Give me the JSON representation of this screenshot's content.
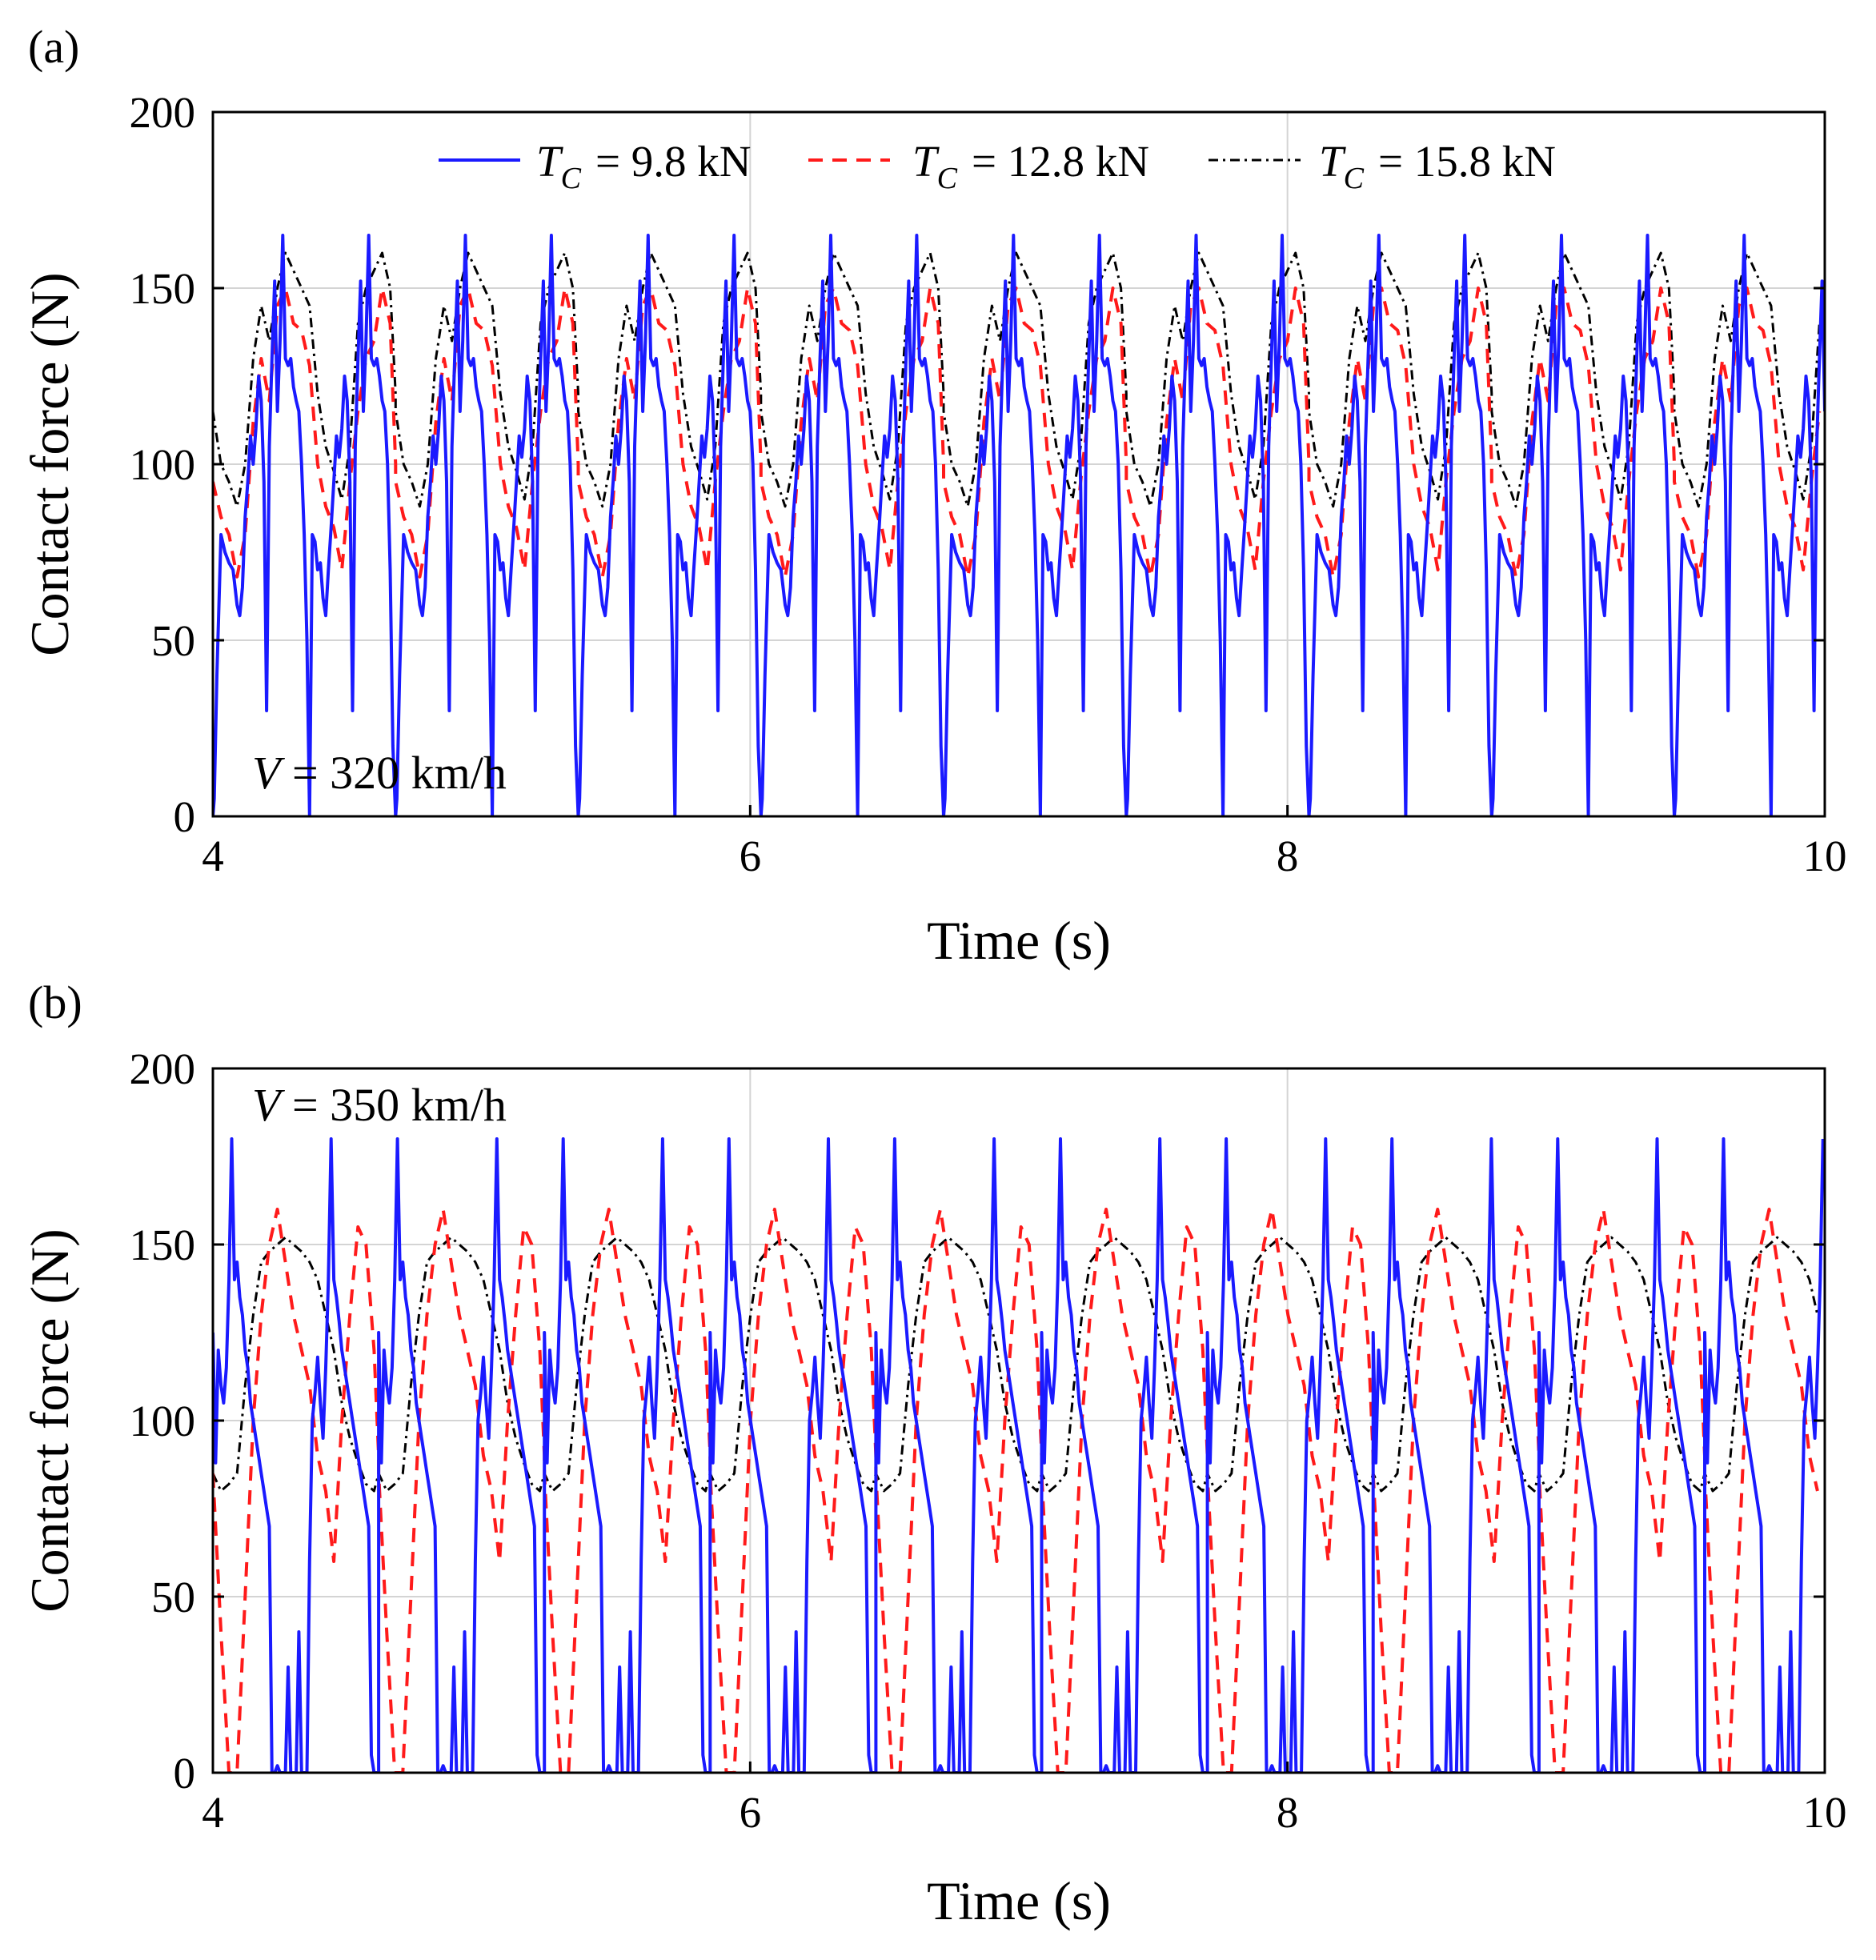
{
  "chart_data": [
    {
      "type": "line",
      "panel_label": "(a)",
      "xlabel": "Time (s)",
      "ylabel": "Contact force (N)",
      "xlim": [
        4,
        10
      ],
      "ylim": [
        0,
        200
      ],
      "xticks": [
        4,
        6,
        8,
        10
      ],
      "yticks": [
        0,
        50,
        100,
        150,
        200
      ],
      "grid": true,
      "annotation": {
        "italic": "V",
        "text": " = 320 km/h",
        "position": "bottom-left"
      },
      "legend": {
        "position": "top",
        "entries": [
          {
            "symbol": "T",
            "sub": "C",
            "label": "= 9.8 kN",
            "color": "#1a1aff",
            "style": "solid"
          },
          {
            "symbol": "T",
            "sub": "C",
            "label": "= 12.8 kN",
            "color": "#ff1a1a",
            "style": "dashed"
          },
          {
            "symbol": "T",
            "sub": "C",
            "label": "= 15.8 kN",
            "color": "#000000",
            "style": "dashdot"
          }
        ]
      },
      "period_s": 0.68,
      "series": [
        {
          "name": "Tc = 9.8 kN",
          "color": "#1a1aff",
          "style": "solid",
          "phase": [
            0.0,
            0.005,
            0.015,
            0.03,
            0.045,
            0.06,
            0.075,
            0.09,
            0.1,
            0.11,
            0.12,
            0.13,
            0.14,
            0.15,
            0.16,
            0.17,
            0.18,
            0.19,
            0.2,
            0.21,
            0.22,
            0.23,
            0.24,
            0.25,
            0.26,
            0.27,
            0.28,
            0.29,
            0.3,
            0.31,
            0.32,
            0.33,
            0.34,
            0.35,
            0.36,
            0.37,
            0.38,
            0.39,
            0.4,
            0.41,
            0.42,
            0.43,
            0.44,
            0.45,
            0.46,
            0.47,
            0.48,
            0.49,
            0.5,
            0.51,
            0.52,
            0.53,
            0.54,
            0.55,
            0.56,
            0.57,
            0.58,
            0.59,
            0.6,
            0.61,
            0.62,
            0.63,
            0.64,
            0.65,
            0.66,
            0.67,
            0.68
          ],
          "values": [
            0,
            5,
            40,
            80,
            75,
            72,
            70,
            60,
            57,
            65,
            85,
            95,
            108,
            100,
            110,
            125,
            118,
            95,
            30,
            105,
            130,
            152,
            115,
            135,
            165,
            130,
            128,
            130,
            122,
            118,
            115,
            100,
            80,
            50,
            0,
            80,
            78,
            70,
            72,
            62,
            57,
            70,
            82,
            95,
            108,
            102,
            110,
            125,
            118,
            95,
            30,
            105,
            130,
            152,
            115,
            135,
            165,
            130,
            128,
            130,
            125,
            118,
            115,
            100,
            70,
            20,
            0
          ]
        },
        {
          "name": "Tc = 12.8 kN",
          "color": "#ff1a1a",
          "style": "dashed",
          "phase": [
            0,
            0.03,
            0.06,
            0.09,
            0.12,
            0.15,
            0.18,
            0.21,
            0.24,
            0.27,
            0.3,
            0.33,
            0.36,
            0.39,
            0.42,
            0.45,
            0.48,
            0.51,
            0.54,
            0.57,
            0.6,
            0.63,
            0.66,
            0.68
          ],
          "values": [
            95,
            85,
            80,
            68,
            80,
            112,
            130,
            118,
            145,
            150,
            140,
            138,
            128,
            100,
            88,
            82,
            70,
            95,
            115,
            130,
            135,
            150,
            140,
            100
          ]
        },
        {
          "name": "Tc = 15.8 kN",
          "color": "#000000",
          "style": "dashdot",
          "phase": [
            0,
            0.03,
            0.06,
            0.09,
            0.12,
            0.15,
            0.18,
            0.21,
            0.24,
            0.27,
            0.3,
            0.33,
            0.36,
            0.39,
            0.42,
            0.45,
            0.48,
            0.51,
            0.54,
            0.57,
            0.6,
            0.63,
            0.66,
            0.68
          ],
          "values": [
            115,
            100,
            95,
            88,
            100,
            130,
            145,
            135,
            150,
            160,
            155,
            150,
            145,
            120,
            105,
            98,
            90,
            105,
            140,
            150,
            155,
            160,
            150,
            120
          ]
        }
      ]
    },
    {
      "type": "line",
      "panel_label": "(b)",
      "xlabel": "Time (s)",
      "ylabel": "Contact force (N)",
      "xlim": [
        4,
        10
      ],
      "ylim": [
        0,
        200
      ],
      "xticks": [
        4,
        6,
        8,
        10
      ],
      "yticks": [
        0,
        50,
        100,
        150,
        200
      ],
      "grid": true,
      "annotation": {
        "italic": "V",
        "text": " = 350 km/h",
        "position": "top-left"
      },
      "period_s": 0.617,
      "series": [
        {
          "name": "Tc = 9.8 kN",
          "color": "#1a1aff",
          "style": "solid",
          "phase": [
            0,
            0.01,
            0.02,
            0.03,
            0.04,
            0.05,
            0.06,
            0.07,
            0.08,
            0.09,
            0.1,
            0.11,
            0.12,
            0.13,
            0.14,
            0.15,
            0.16,
            0.17,
            0.18,
            0.19,
            0.2,
            0.21,
            0.22,
            0.23,
            0.24,
            0.25,
            0.26,
            0.27,
            0.28,
            0.29,
            0.3,
            0.31,
            0.32,
            0.33,
            0.34,
            0.35,
            0.36,
            0.37,
            0.38,
            0.39,
            0.4,
            0.41,
            0.42,
            0.43,
            0.44,
            0.45,
            0.46,
            0.47,
            0.48,
            0.49,
            0.5,
            0.51,
            0.52,
            0.53,
            0.54,
            0.55,
            0.56,
            0.57,
            0.58,
            0.59,
            0.6,
            0.617
          ],
          "values": [
            125,
            88,
            120,
            110,
            105,
            115,
            140,
            180,
            140,
            145,
            135,
            130,
            120,
            115,
            105,
            100,
            95,
            90,
            85,
            80,
            75,
            70,
            0,
            0,
            2,
            0,
            0,
            0,
            30,
            0,
            0,
            0,
            40,
            0,
            0,
            0,
            60,
            100,
            108,
            118,
            105,
            95,
            115,
            140,
            180,
            140,
            135,
            128,
            120,
            115,
            110,
            105,
            100,
            95,
            90,
            85,
            80,
            75,
            70,
            5,
            0,
            0
          ]
        },
        {
          "name": "Tc = 12.8 kN",
          "color": "#ff1a1a",
          "style": "dashed",
          "phase": [
            0,
            0.03,
            0.06,
            0.09,
            0.12,
            0.15,
            0.18,
            0.21,
            0.24,
            0.27,
            0.3,
            0.33,
            0.36,
            0.39,
            0.42,
            0.45,
            0.48,
            0.51,
            0.54,
            0.57,
            0.6,
            0.617
          ],
          "values": [
            85,
            40,
            0,
            0,
            50,
            100,
            130,
            150,
            160,
            145,
            130,
            120,
            110,
            90,
            80,
            60,
            100,
            130,
            155,
            150,
            120,
            90
          ]
        },
        {
          "name": "Tc = 15.8 kN",
          "color": "#000000",
          "style": "dashdot",
          "phase": [
            0,
            0.03,
            0.06,
            0.09,
            0.12,
            0.15,
            0.18,
            0.21,
            0.24,
            0.27,
            0.3,
            0.33,
            0.36,
            0.39,
            0.42,
            0.45,
            0.48,
            0.51,
            0.54,
            0.57,
            0.6,
            0.617
          ],
          "values": [
            85,
            80,
            82,
            85,
            110,
            130,
            145,
            148,
            150,
            152,
            150,
            148,
            145,
            140,
            130,
            120,
            105,
            95,
            88,
            82,
            80,
            85
          ]
        }
      ]
    }
  ]
}
